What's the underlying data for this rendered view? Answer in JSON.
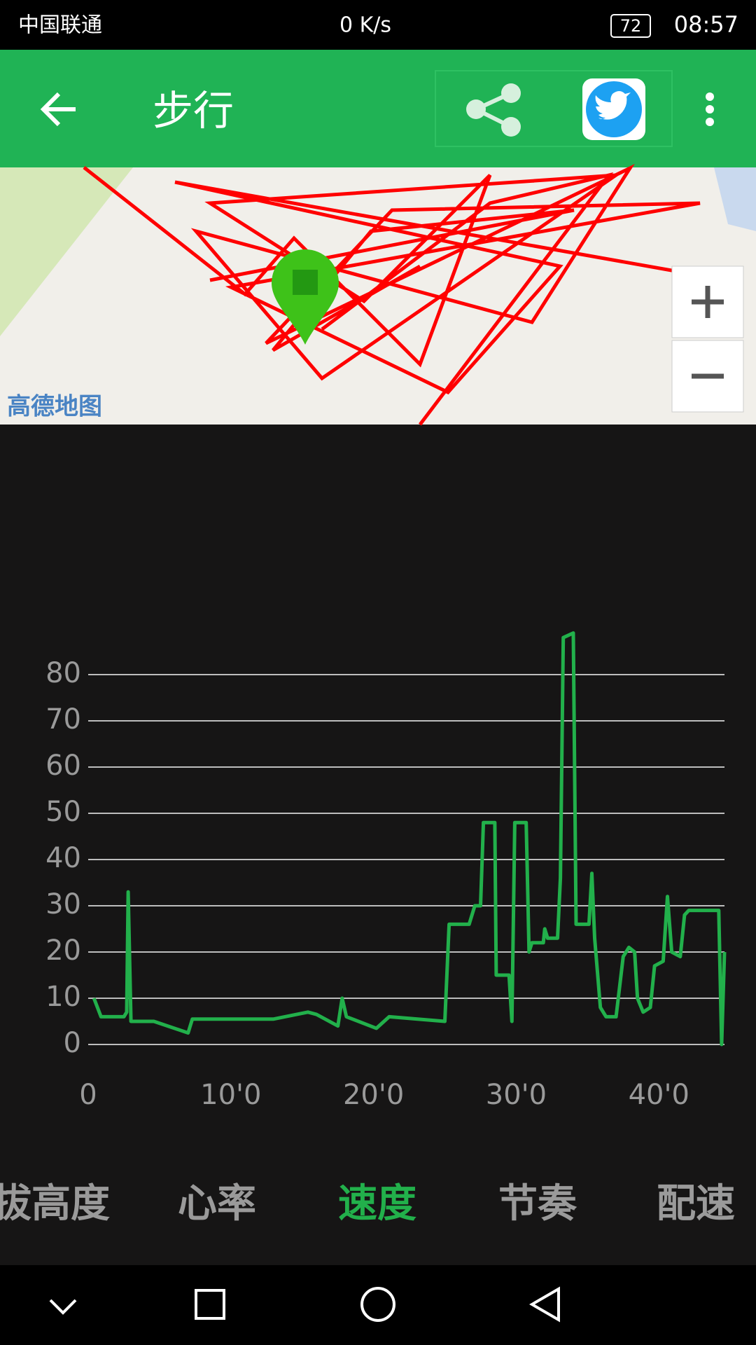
{
  "status_bar": {
    "carrier": "中国联通",
    "speed": "0 K/s",
    "battery": "72",
    "time": "08:57"
  },
  "app_bar": {
    "title": "步行"
  },
  "map": {
    "attribution": "高德地图"
  },
  "chart_data": {
    "type": "line",
    "x": [
      0.4,
      0.9,
      2.5,
      2.7,
      2.8,
      3.0,
      4.6,
      7.0,
      7.3,
      9.4,
      13.0,
      15.4,
      16.0,
      17.5,
      17.8,
      18.1,
      20.2,
      21.1,
      25.0,
      25.3,
      26.7,
      27.1,
      27.5,
      27.7,
      28.5,
      28.6,
      29.5,
      29.7,
      29.9,
      30.7,
      30.9,
      31.1,
      31.9,
      32.0,
      32.2,
      32.9,
      33.1,
      33.3,
      34.0,
      34.2,
      35.1,
      35.3,
      35.5,
      35.9,
      36.3,
      37.0,
      37.5,
      37.9,
      38.3,
      38.5,
      38.9,
      39.4,
      39.7,
      40.3,
      40.6,
      40.9,
      41.5,
      41.8,
      42.1,
      44.2,
      44.4,
      44.6
    ],
    "series": [
      {
        "color": "#22b04b",
        "values": [
          10,
          6,
          6,
          7,
          33,
          5,
          5,
          2.5,
          5.5,
          5.5,
          5.5,
          7,
          6.5,
          4,
          10,
          6,
          3.5,
          6,
          5,
          26,
          26,
          30,
          30,
          48,
          48,
          15,
          15,
          5,
          48,
          48,
          20,
          22,
          22,
          25,
          23,
          23,
          36,
          88,
          89,
          26,
          26,
          37,
          23,
          8,
          6,
          6,
          19,
          21,
          20,
          10,
          7,
          8,
          17,
          18,
          32,
          20,
          19,
          28,
          29,
          29,
          0,
          20
        ]
      }
    ],
    "xlim": [
      0,
      44.6
    ],
    "ylim": [
      0,
      80
    ],
    "xticks": [
      0,
      {
        "value": 10,
        "label": "10'0"
      },
      {
        "value": 20,
        "label": "20'0"
      },
      {
        "value": 30,
        "label": "30'0"
      },
      {
        "value": 40,
        "label": "40'0"
      }
    ],
    "yticks": [
      0,
      10,
      20,
      30,
      40,
      50,
      60,
      70,
      80
    ],
    "grid": true
  },
  "tabs": [
    "拔高度",
    "心率",
    "速度",
    "节奏",
    "配速"
  ]
}
